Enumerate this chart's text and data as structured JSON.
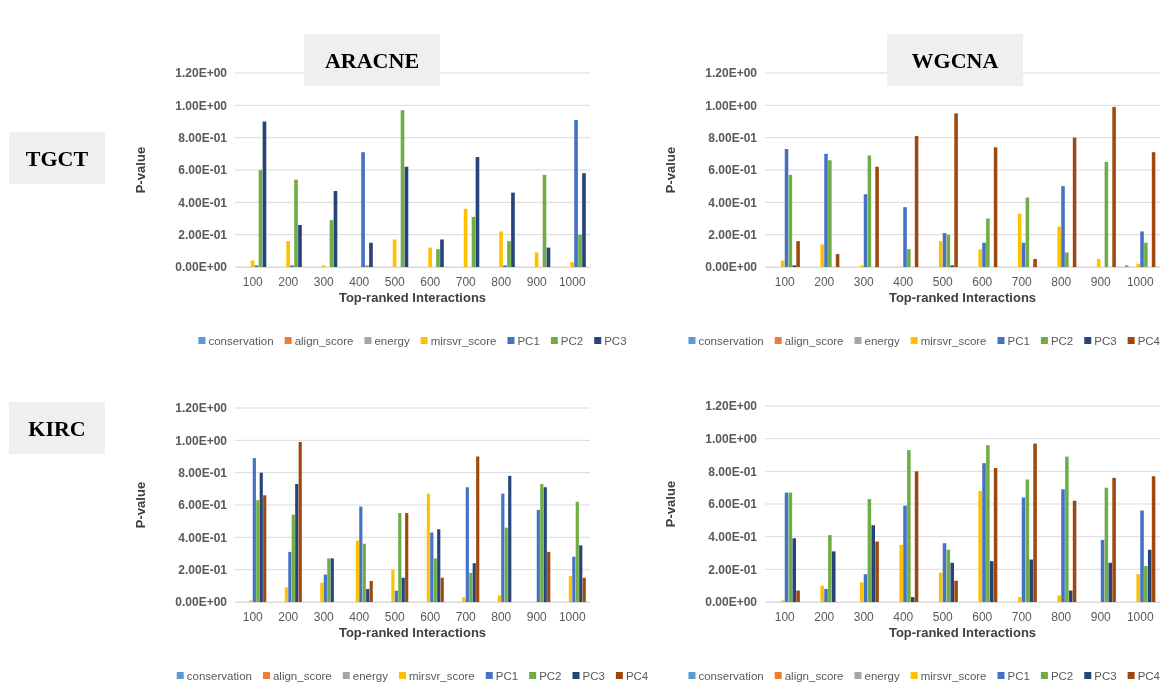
{
  "chart_data": [
    {
      "type": "bar",
      "title": "ARACNE",
      "annotations": [
        "TGCT"
      ],
      "xlabel": "Top-ranked Interactions",
      "ylabel": "P-value",
      "categories": [
        "100",
        "200",
        "300",
        "400",
        "500",
        "600",
        "700",
        "800",
        "900",
        "1000"
      ],
      "ylim": [
        0,
        1.2
      ],
      "yticks": [
        {
          "value": 0,
          "label": "0.00E+00"
        },
        {
          "value": 0.2,
          "label": "2.00E-01"
        },
        {
          "value": 0.4,
          "label": "4.00E-01"
        },
        {
          "value": 0.6,
          "label": "6.00E-01"
        },
        {
          "value": 0.8,
          "label": "8.00E-01"
        },
        {
          "value": 1,
          "label": "1.00E+00"
        },
        {
          "value": 1.2,
          "label": "1.20E+00"
        }
      ],
      "grid": "y",
      "legend": "bottom",
      "series": [
        {
          "name": "conservation",
          "color": "#5b9bd5",
          "values": [
            0,
            0,
            0,
            0,
            0,
            0,
            0,
            0,
            0,
            0
          ]
        },
        {
          "name": "align_score",
          "color": "#ed7d31",
          "values": [
            0,
            0,
            0,
            0,
            0,
            0,
            0,
            0,
            0,
            0
          ]
        },
        {
          "name": "energy",
          "color": "#a5a5a5",
          "values": [
            0,
            0,
            0,
            0,
            0,
            0,
            0,
            0,
            0,
            0
          ]
        },
        {
          "name": "mirsvr_score",
          "color": "#ffc000",
          "values": [
            0.04,
            0.16,
            0.01,
            0,
            0.17,
            0.12,
            0.36,
            0.22,
            0.09,
            0.03
          ]
        },
        {
          "name": "PC1",
          "color": "#4472c4",
          "values": [
            0.01,
            0.01,
            0,
            0.71,
            0,
            0,
            0,
            0.01,
            0,
            0.91
          ]
        },
        {
          "name": "PC2",
          "color": "#70ad47",
          "values": [
            0.6,
            0.54,
            0.29,
            0.01,
            0.97,
            0.11,
            0.31,
            0.16,
            0.57,
            0.2
          ]
        },
        {
          "name": "PC3",
          "color": "#264478",
          "values": [
            0.9,
            0.26,
            0.47,
            0.15,
            0.62,
            0.17,
            0.68,
            0.46,
            0.12,
            0.58
          ]
        }
      ]
    },
    {
      "type": "bar",
      "title": "WGCNA",
      "xlabel": "Top-ranked Interactions",
      "ylabel": "P-value",
      "categories": [
        "100",
        "200",
        "300",
        "400",
        "500",
        "600",
        "700",
        "800",
        "900",
        "1000"
      ],
      "ylim": [
        0,
        1.2
      ],
      "yticks": [
        {
          "value": 0,
          "label": "0.00E+00"
        },
        {
          "value": 0.2,
          "label": "2.00E-01"
        },
        {
          "value": 0.4,
          "label": "4.00E-01"
        },
        {
          "value": 0.6,
          "label": "6.00E-01"
        },
        {
          "value": 0.8,
          "label": "8.00E-01"
        },
        {
          "value": 1,
          "label": "1.00E+00"
        },
        {
          "value": 1.2,
          "label": "1.20E+00"
        }
      ],
      "grid": "y",
      "legend": "bottom",
      "series": [
        {
          "name": "conservation",
          "color": "#5b9bd5",
          "values": [
            0,
            0,
            0,
            0,
            0,
            0,
            0,
            0,
            0,
            0.01
          ]
        },
        {
          "name": "align_score",
          "color": "#ed7d31",
          "values": [
            0,
            0,
            0,
            0,
            0,
            0,
            0,
            0,
            0,
            0
          ]
        },
        {
          "name": "energy",
          "color": "#a5a5a5",
          "values": [
            0,
            0,
            0,
            0,
            0,
            0,
            0,
            0,
            0,
            0
          ]
        },
        {
          "name": "mirsvr_score",
          "color": "#ffc000",
          "values": [
            0.04,
            0.14,
            0.01,
            0,
            0.16,
            0.11,
            0.33,
            0.25,
            0.05,
            0.02
          ]
        },
        {
          "name": "PC1",
          "color": "#4472c4",
          "values": [
            0.73,
            0.7,
            0.45,
            0.37,
            0.21,
            0.15,
            0.15,
            0.5,
            0,
            0.22
          ]
        },
        {
          "name": "PC2",
          "color": "#70ad47",
          "values": [
            0.57,
            0.66,
            0.69,
            0.11,
            0.2,
            0.3,
            0.43,
            0.09,
            0.65,
            0.15
          ]
        },
        {
          "name": "PC3",
          "color": "#264478",
          "values": [
            0.01,
            0,
            0,
            0,
            0.01,
            0,
            0,
            0,
            0,
            0
          ]
        },
        {
          "name": "PC4",
          "color": "#9e480e",
          "values": [
            0.16,
            0.08,
            0.62,
            0.81,
            0.95,
            0.74,
            0.05,
            0.8,
            0.99,
            0.71
          ]
        }
      ]
    },
    {
      "type": "bar",
      "annotations": [
        "KIRC"
      ],
      "xlabel": "Top-ranked Interactions",
      "ylabel": "P-value",
      "categories": [
        "100",
        "200",
        "300",
        "400",
        "500",
        "600",
        "700",
        "800",
        "900",
        "1000"
      ],
      "ylim": [
        0,
        1.2
      ],
      "yticks": [
        {
          "value": 0,
          "label": "0.00E+00"
        },
        {
          "value": 0.2,
          "label": "2.00E-01"
        },
        {
          "value": 0.4,
          "label": "4.00E-01"
        },
        {
          "value": 0.6,
          "label": "6.00E-01"
        },
        {
          "value": 0.8,
          "label": "8.00E-01"
        },
        {
          "value": 1,
          "label": "1.00E+00"
        },
        {
          "value": 1.2,
          "label": "1.20E+00"
        }
      ],
      "grid": "y",
      "legend": "bottom",
      "series": [
        {
          "name": "conservation",
          "color": "#5b9bd5",
          "values": [
            0,
            0,
            0,
            0,
            0,
            0,
            0,
            0,
            0,
            0
          ]
        },
        {
          "name": "align_score",
          "color": "#ed7d31",
          "values": [
            0,
            0,
            0,
            0,
            0,
            0,
            0,
            0,
            0,
            0
          ]
        },
        {
          "name": "energy",
          "color": "#a5a5a5",
          "values": [
            0,
            0,
            0,
            0,
            0,
            0,
            0,
            0,
            0,
            0
          ]
        },
        {
          "name": "mirsvr_score",
          "color": "#ffc000",
          "values": [
            0.01,
            0.09,
            0.12,
            0.38,
            0.2,
            0.67,
            0.03,
            0.04,
            0,
            0.16
          ]
        },
        {
          "name": "PC1",
          "color": "#4472c4",
          "values": [
            0.89,
            0.31,
            0.17,
            0.59,
            0.07,
            0.43,
            0.71,
            0.67,
            0.57,
            0.28
          ]
        },
        {
          "name": "PC2",
          "color": "#70ad47",
          "values": [
            0.63,
            0.54,
            0.27,
            0.36,
            0.55,
            0.27,
            0.18,
            0.46,
            0.73,
            0.62
          ]
        },
        {
          "name": "PC3",
          "color": "#264478",
          "values": [
            0.8,
            0.73,
            0.27,
            0.08,
            0.15,
            0.45,
            0.24,
            0.78,
            0.71,
            0.35
          ]
        },
        {
          "name": "PC4",
          "color": "#9e480e",
          "values": [
            0.66,
            0.99,
            0,
            0.13,
            0.55,
            0.15,
            0.9,
            0,
            0.31,
            0.15
          ]
        }
      ]
    },
    {
      "type": "bar",
      "xlabel": "Top-ranked Interactions",
      "ylabel": "P-value",
      "categories": [
        "100",
        "200",
        "300",
        "400",
        "500",
        "600",
        "700",
        "800",
        "900",
        "1000"
      ],
      "ylim": [
        0,
        1.2
      ],
      "yticks": [
        {
          "value": 0,
          "label": "0.00E+00"
        },
        {
          "value": 0.2,
          "label": "2.00E-01"
        },
        {
          "value": 0.4,
          "label": "4.00E-01"
        },
        {
          "value": 0.6,
          "label": "6.00E-01"
        },
        {
          "value": 0.8,
          "label": "8.00E-01"
        },
        {
          "value": 1,
          "label": "1.00E+00"
        },
        {
          "value": 1.2,
          "label": "1.20E+00"
        }
      ],
      "grid": "y",
      "legend": "bottom",
      "series": [
        {
          "name": "conservation",
          "color": "#5b9bd5",
          "values": [
            0,
            0,
            0,
            0,
            0,
            0,
            0,
            0,
            0,
            0
          ]
        },
        {
          "name": "align_score",
          "color": "#ed7d31",
          "values": [
            0,
            0,
            0,
            0,
            0,
            0,
            0,
            0,
            0,
            0
          ]
        },
        {
          "name": "energy",
          "color": "#a5a5a5",
          "values": [
            0,
            0,
            0,
            0,
            0,
            0,
            0,
            0,
            0,
            0
          ]
        },
        {
          "name": "mirsvr_score",
          "color": "#ffc000",
          "values": [
            0.01,
            0.1,
            0.12,
            0.35,
            0.18,
            0.68,
            0.03,
            0.04,
            0,
            0.17
          ]
        },
        {
          "name": "PC1",
          "color": "#4472c4",
          "values": [
            0.67,
            0.08,
            0.17,
            0.59,
            0.36,
            0.85,
            0.64,
            0.69,
            0.38,
            0.56
          ]
        },
        {
          "name": "PC2",
          "color": "#70ad47",
          "values": [
            0.67,
            0.41,
            0.63,
            0.93,
            0.32,
            0.96,
            0.75,
            0.89,
            0.7,
            0.22
          ]
        },
        {
          "name": "PC3",
          "color": "#264478",
          "values": [
            0.39,
            0.31,
            0.47,
            0.03,
            0.24,
            0.25,
            0.26,
            0.07,
            0.24,
            0.32
          ]
        },
        {
          "name": "PC4",
          "color": "#9e480e",
          "values": [
            0.07,
            0,
            0.37,
            0.8,
            0.13,
            0.82,
            0.97,
            0.62,
            0.76,
            0.77
          ]
        }
      ]
    }
  ]
}
